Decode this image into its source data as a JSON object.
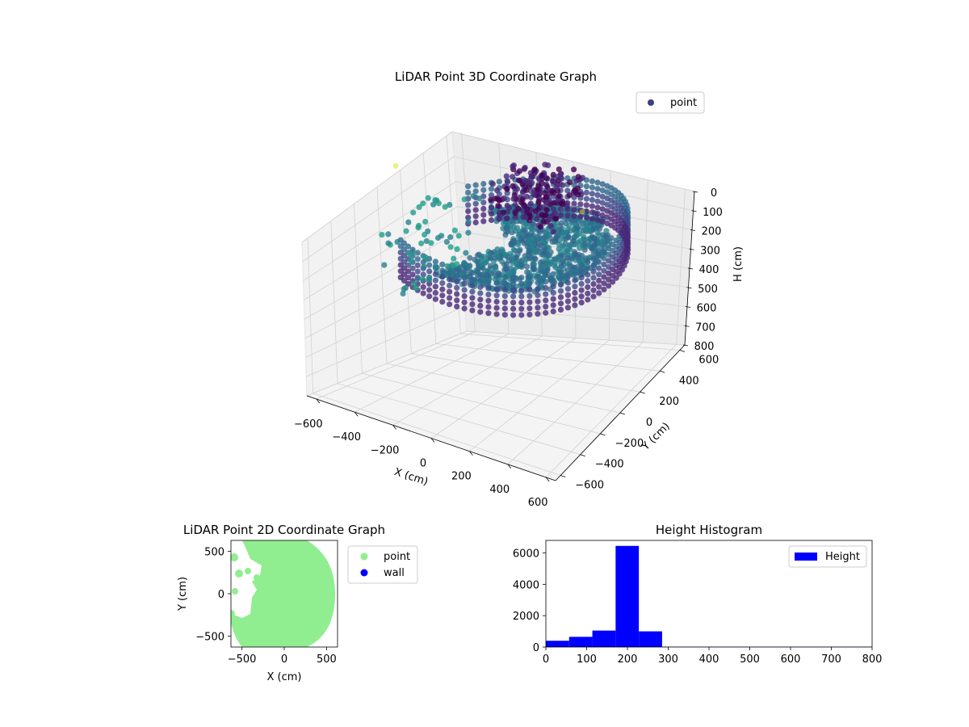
{
  "chart_data": [
    {
      "type": "scatter",
      "projection": "3d",
      "title": "LiDAR Point 3D Coordinate Graph",
      "xlabel": "X (cm)",
      "ylabel": "Y (cm)",
      "zlabel": "H (cm)",
      "xlim": [
        -650,
        650
      ],
      "ylim": [
        -650,
        650
      ],
      "zlim": [
        800,
        0
      ],
      "xticks": [
        "−600",
        "−400",
        "−200",
        "0",
        "200",
        "400",
        "600"
      ],
      "yticks": [
        "−600",
        "−400",
        "−200",
        "0",
        "200",
        "400",
        "600"
      ],
      "zticks": [
        "0",
        "100",
        "200",
        "300",
        "400",
        "500",
        "600",
        "700",
        "800"
      ],
      "colormap": "viridis",
      "legend": {
        "position": "top-right",
        "entries": [
          {
            "label": "point",
            "color": "#3b3f86"
          }
        ]
      },
      "series": [
        {
          "name": "point",
          "description_points": [
            {
              "x": -600,
              "y": 0,
              "h": 0
            },
            {
              "x": 200,
              "y": 400,
              "h": 200
            }
          ]
        }
      ],
      "grid": true
    },
    {
      "type": "scatter",
      "title": "LiDAR Point 2D Coordinate Graph",
      "xlabel": "X (cm)",
      "ylabel": "Y (cm)",
      "xlim": [
        -630,
        630
      ],
      "ylim": [
        -630,
        630
      ],
      "xticks": [
        "−500",
        "0",
        "500"
      ],
      "yticks": [
        "500",
        "0",
        "−500"
      ],
      "legend": {
        "position": "right",
        "entries": [
          {
            "label": "point",
            "color": "#90ee90"
          },
          {
            "label": "wall",
            "color": "#0000ff"
          }
        ]
      }
    },
    {
      "type": "bar",
      "title": "Height Histogram",
      "xlim": [
        0,
        800
      ],
      "ylim": [
        0,
        6800
      ],
      "xticks": [
        "0",
        "100",
        "200",
        "300",
        "400",
        "500",
        "600",
        "700",
        "800"
      ],
      "yticks": [
        "0",
        "2000",
        "4000",
        "6000"
      ],
      "bins": [
        {
          "start": 0,
          "end": 57,
          "value": 400
        },
        {
          "start": 57,
          "end": 114,
          "value": 650
        },
        {
          "start": 114,
          "end": 171,
          "value": 1050
        },
        {
          "start": 171,
          "end": 228,
          "value": 6450
        },
        {
          "start": 228,
          "end": 285,
          "value": 1000
        },
        {
          "start": 285,
          "end": 800,
          "value": 20
        }
      ],
      "color": "#0000ff",
      "legend": {
        "position": "top-right",
        "entries": [
          {
            "label": "Height",
            "color": "#0000ff"
          }
        ]
      }
    }
  ]
}
